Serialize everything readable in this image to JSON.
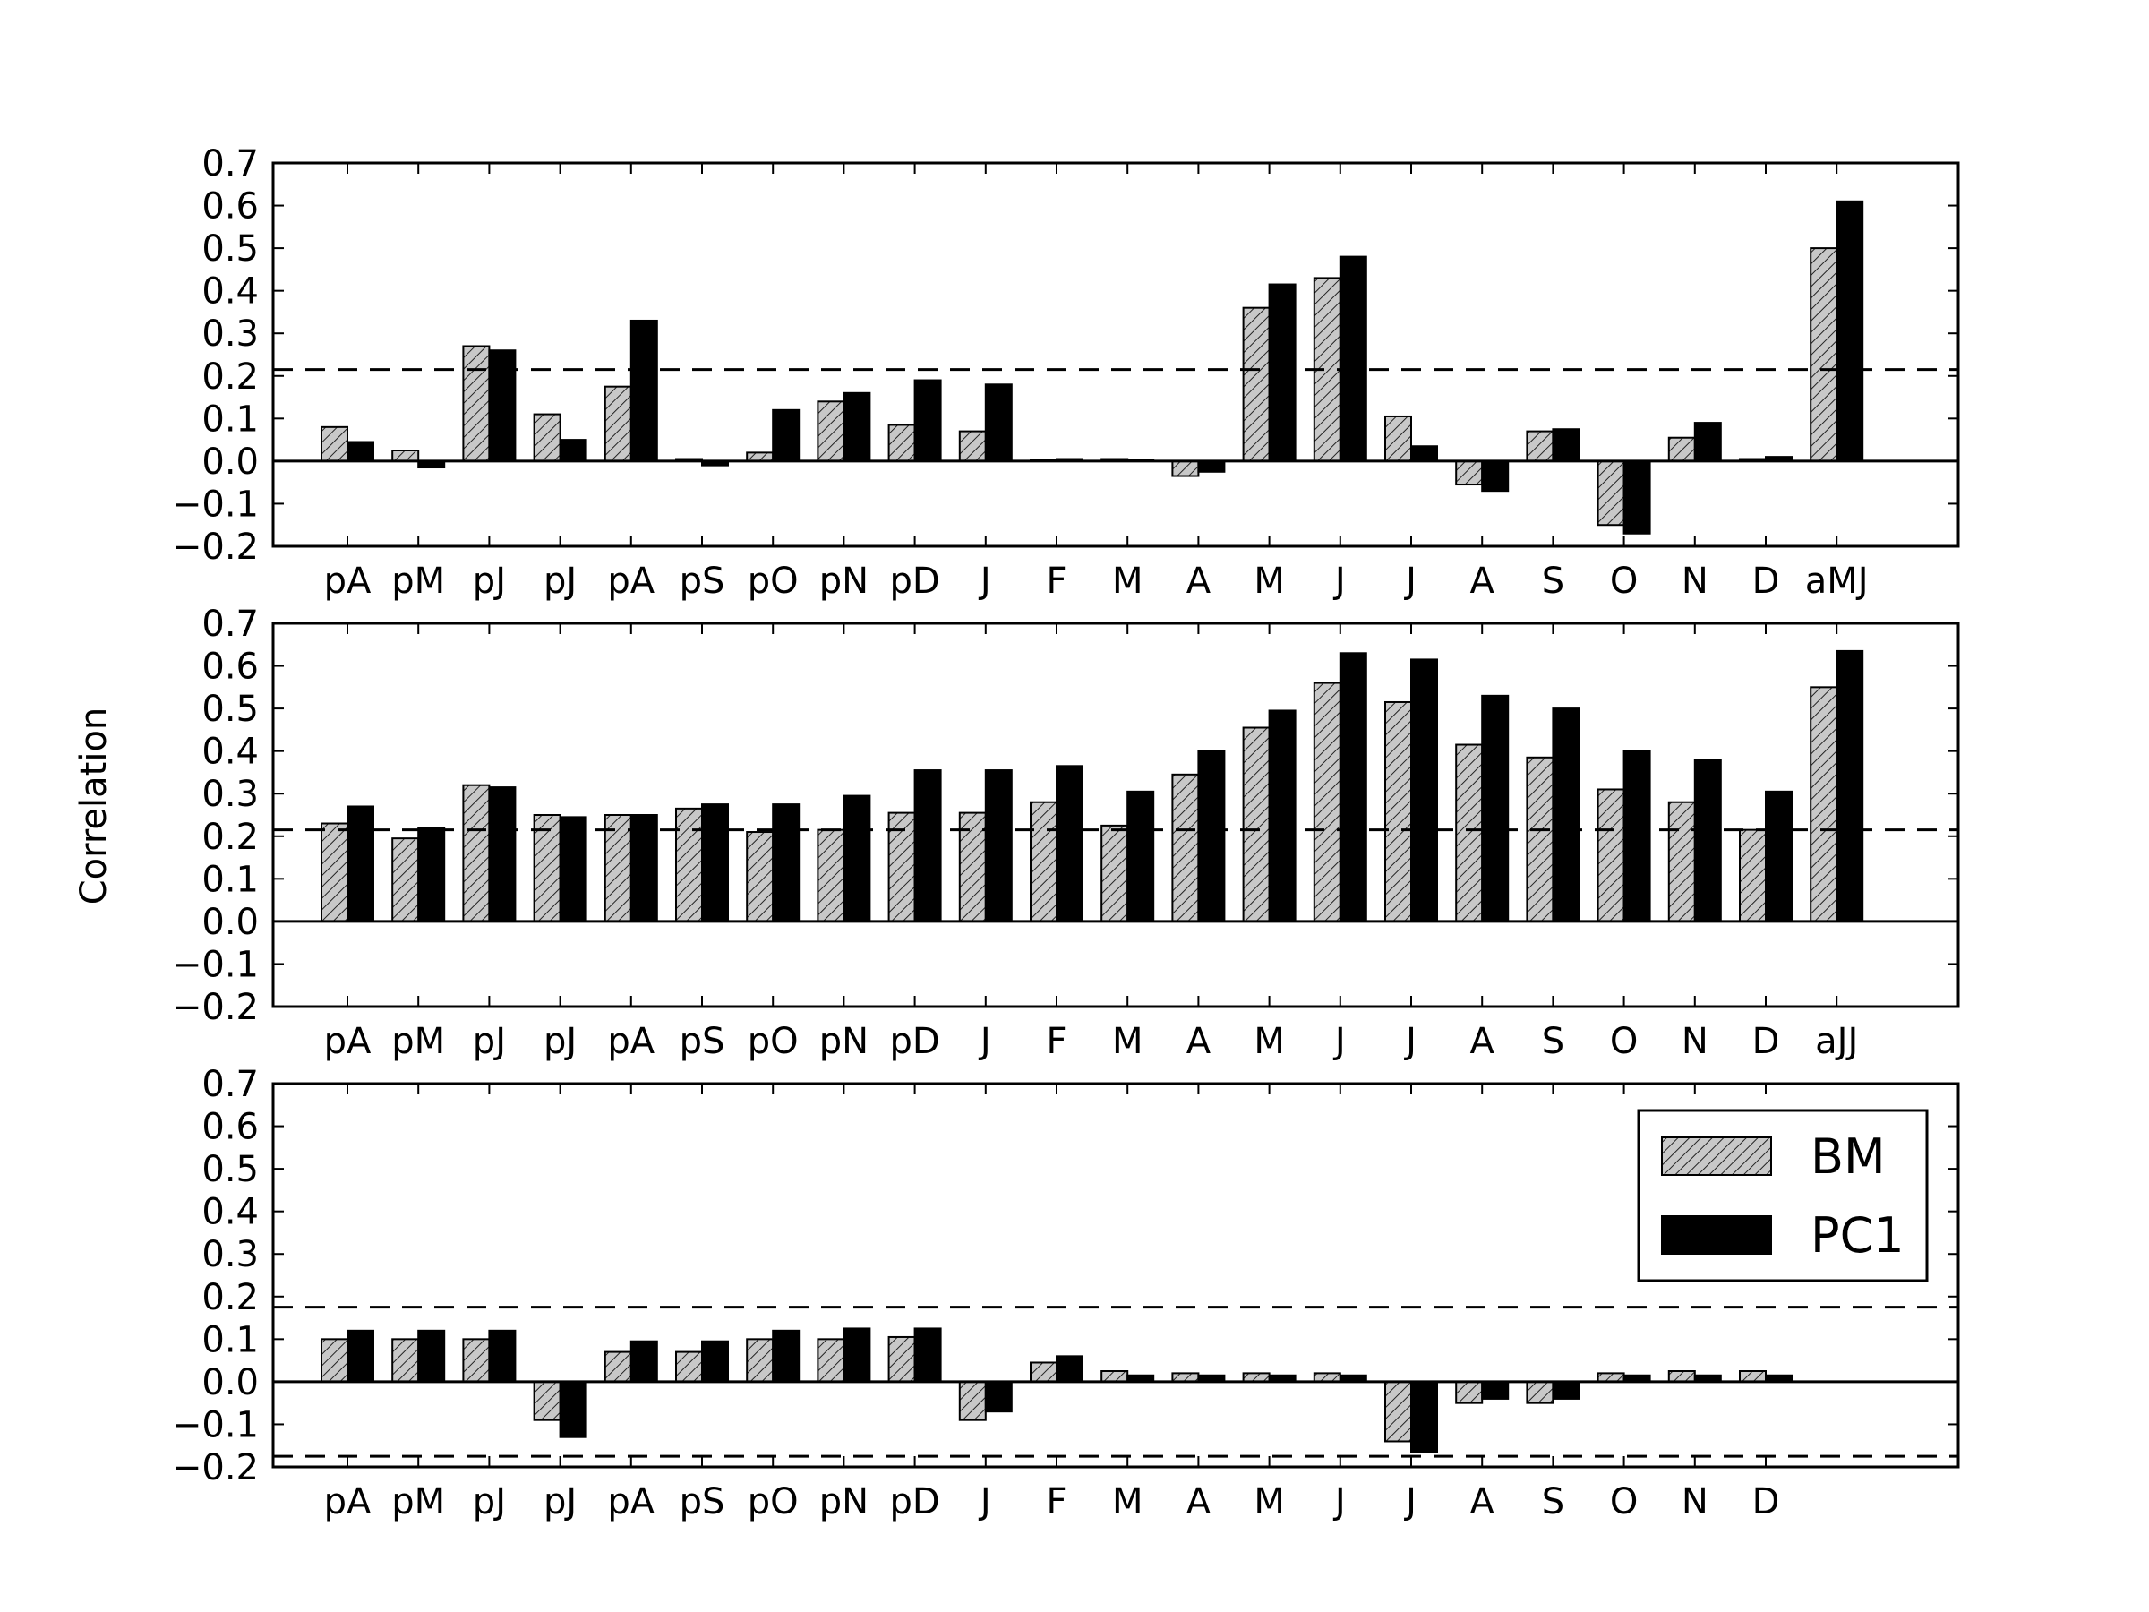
{
  "ylabel": "Correlation",
  "colors": {
    "bm_fill": "#c8c8c8",
    "pc1_fill": "#000000",
    "edge": "#000000"
  },
  "legend": {
    "bm_label": "BM",
    "pc1_label": "PC1",
    "position": "upper-right of bottom panel"
  },
  "chart_data": [
    {
      "type": "bar",
      "ylim": [
        -0.2,
        0.7
      ],
      "yticks": [
        "0.7",
        "0.6",
        "0.5",
        "0.4",
        "0.3",
        "0.2",
        "0.1",
        "0.0",
        "−0.1",
        "−0.2"
      ],
      "reference_lines": [
        0.215
      ],
      "categories": [
        "pA",
        "pM",
        "pJ",
        "pJ",
        "pA",
        "pS",
        "pO",
        "pN",
        "pD",
        "J",
        "F",
        "M",
        "A",
        "M",
        "J",
        "J",
        "A",
        "S",
        "O",
        "N",
        "D",
        "aMJ"
      ],
      "series": [
        {
          "name": "BM",
          "values": [
            0.08,
            0.025,
            0.27,
            0.11,
            0.175,
            0.005,
            0.02,
            0.14,
            0.085,
            0.07,
            0.002,
            0.005,
            -0.035,
            0.36,
            0.43,
            0.105,
            -0.055,
            0.07,
            -0.15,
            0.055,
            0.005,
            0.5
          ]
        },
        {
          "name": "PC1",
          "values": [
            0.045,
            -0.015,
            0.26,
            0.05,
            0.33,
            -0.01,
            0.12,
            0.16,
            0.19,
            0.18,
            0.005,
            0.002,
            -0.025,
            0.415,
            0.48,
            0.035,
            -0.07,
            0.075,
            -0.17,
            0.09,
            0.01,
            0.61
          ]
        }
      ]
    },
    {
      "type": "bar",
      "ylim": [
        -0.2,
        0.7
      ],
      "yticks": [
        "0.7",
        "0.6",
        "0.5",
        "0.4",
        "0.3",
        "0.2",
        "0.1",
        "0.0",
        "−0.1",
        "−0.2"
      ],
      "reference_lines": [
        0.215
      ],
      "categories": [
        "pA",
        "pM",
        "pJ",
        "pJ",
        "pA",
        "pS",
        "pO",
        "pN",
        "pD",
        "J",
        "F",
        "M",
        "A",
        "M",
        "J",
        "J",
        "A",
        "S",
        "O",
        "N",
        "D",
        "aJJ"
      ],
      "series": [
        {
          "name": "BM",
          "values": [
            0.23,
            0.195,
            0.32,
            0.25,
            0.25,
            0.265,
            0.21,
            0.215,
            0.255,
            0.255,
            0.28,
            0.225,
            0.345,
            0.455,
            0.56,
            0.515,
            0.415,
            0.385,
            0.31,
            0.28,
            0.215,
            0.55
          ]
        },
        {
          "name": "PC1",
          "values": [
            0.27,
            0.22,
            0.315,
            0.245,
            0.25,
            0.275,
            0.275,
            0.295,
            0.355,
            0.355,
            0.365,
            0.305,
            0.4,
            0.495,
            0.63,
            0.615,
            0.53,
            0.5,
            0.4,
            0.38,
            0.305,
            0.635
          ]
        }
      ]
    },
    {
      "type": "bar",
      "ylim": [
        -0.2,
        0.7
      ],
      "yticks": [
        "0.7",
        "0.6",
        "0.5",
        "0.4",
        "0.3",
        "0.2",
        "0.1",
        "0.0",
        "−0.1",
        "−0.2"
      ],
      "reference_lines": [
        0.175,
        -0.175
      ],
      "categories": [
        "pA",
        "pM",
        "pJ",
        "pJ",
        "pA",
        "pS",
        "pO",
        "pN",
        "pD",
        "J",
        "F",
        "M",
        "A",
        "M",
        "J",
        "J",
        "A",
        "S",
        "O",
        "N",
        "D"
      ],
      "series": [
        {
          "name": "BM",
          "values": [
            0.1,
            0.1,
            0.1,
            -0.09,
            0.07,
            0.07,
            0.1,
            0.1,
            0.105,
            -0.09,
            0.045,
            0.025,
            0.02,
            0.02,
            0.02,
            -0.14,
            -0.05,
            -0.05,
            0.02,
            0.025,
            0.025
          ]
        },
        {
          "name": "PC1",
          "values": [
            0.12,
            0.12,
            0.12,
            -0.13,
            0.095,
            0.095,
            0.12,
            0.125,
            0.125,
            -0.07,
            0.06,
            0.015,
            0.015,
            0.015,
            0.015,
            -0.165,
            -0.04,
            -0.04,
            0.015,
            0.015,
            0.015
          ]
        }
      ]
    }
  ]
}
